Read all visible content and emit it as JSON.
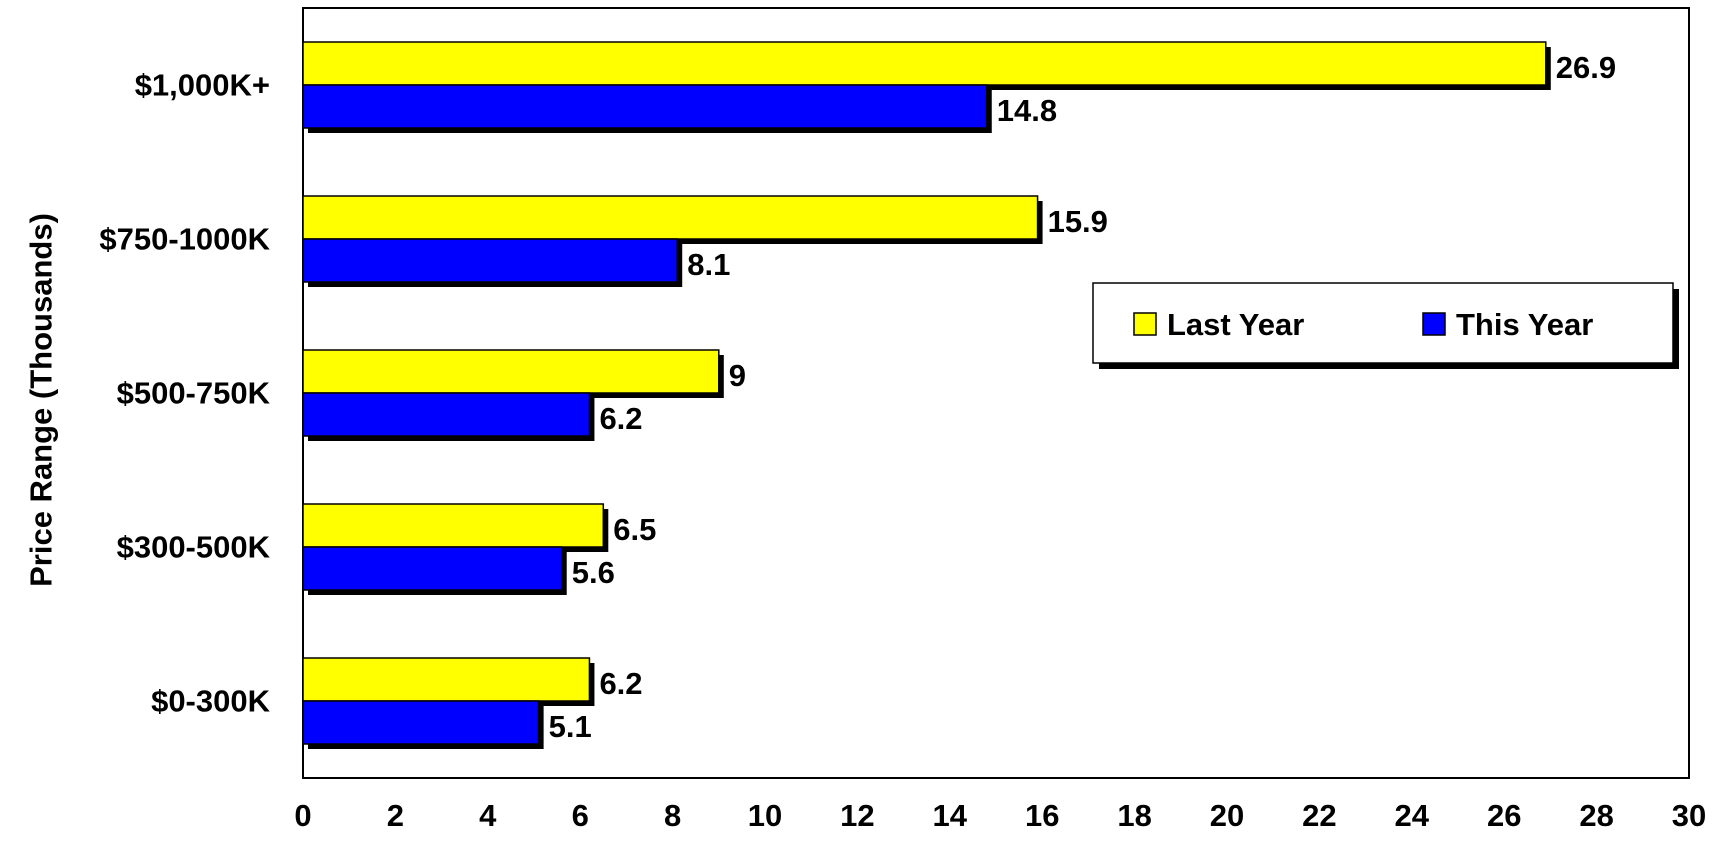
{
  "chart_data": {
    "type": "bar",
    "orientation": "horizontal",
    "categories": [
      "$1,000K+",
      "$750-1000K",
      "$500-750K",
      "$300-500K",
      "$0-300K"
    ],
    "series": [
      {
        "name": "Last Year",
        "color": "#ffff00",
        "values": [
          26.9,
          15.9,
          9,
          6.5,
          6.2
        ],
        "labels": [
          "26.9",
          "15.9",
          "9",
          "6.5",
          "6.2"
        ]
      },
      {
        "name": "This Year",
        "color": "#0000ff",
        "values": [
          14.8,
          8.1,
          6.2,
          5.6,
          5.1
        ],
        "labels": [
          "14.8",
          "8.1",
          "6.2",
          "5.6",
          "5.1"
        ]
      }
    ],
    "xlim": [
      0,
      30
    ],
    "x_ticks": [
      "0",
      "2",
      "4",
      "6",
      "8",
      "10",
      "12",
      "14",
      "16",
      "18",
      "20",
      "22",
      "24",
      "26",
      "28",
      "30"
    ],
    "ylabel": "Price Range (Thousands)",
    "xlabel": "",
    "grid": false,
    "legend_position": "right"
  }
}
